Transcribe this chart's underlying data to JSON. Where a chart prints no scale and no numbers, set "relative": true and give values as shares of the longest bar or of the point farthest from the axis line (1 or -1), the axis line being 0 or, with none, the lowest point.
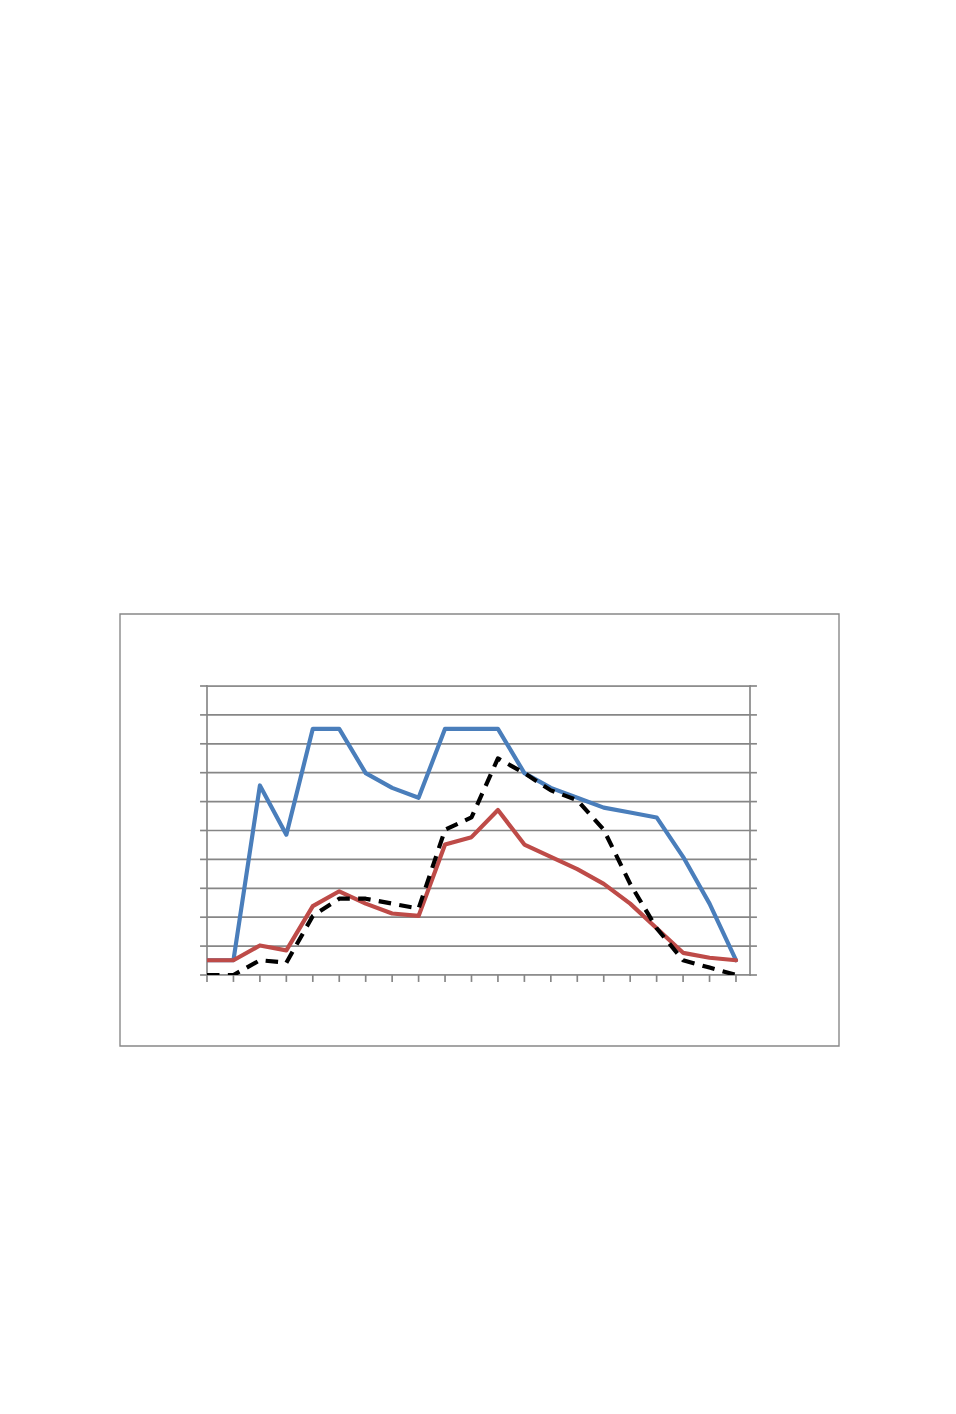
{
  "chart_data": {
    "type": "line",
    "relative": true,
    "grid": "y",
    "line_style": "solid",
    "marker": "none",
    "categories": [
      null,
      null,
      null,
      null,
      null,
      null,
      null,
      null,
      null,
      null,
      null,
      null,
      null,
      null,
      null,
      null,
      null,
      null,
      null,
      null,
      null
    ],
    "series": [
      {
        "color": "#4a7ebb",
        "values": [
          0.06,
          0.06,
          0.77,
          0.57,
          1,
          1,
          0.82,
          0.76,
          0.72,
          1,
          1,
          1,
          0.82,
          0.76,
          0.72,
          0.68,
          0.66,
          0.64,
          0.48,
          0.29,
          0.06
        ]
      },
      {
        "color": "#be4b48",
        "values": [
          0.06,
          0.06,
          0.12,
          0.1,
          0.28,
          0.34,
          0.29,
          0.25,
          0.24,
          0.53,
          0.56,
          0.67,
          0.53,
          0.48,
          0.43,
          0.37,
          0.29,
          0.19,
          0.09,
          0.07,
          0.06
        ]
      },
      {
        "color": "#000000",
        "line_style": "dashed",
        "values": [
          0,
          0,
          0.06,
          0.05,
          0.24,
          0.31,
          0.31,
          0.29,
          0.27,
          0.59,
          0.64,
          0.88,
          0.82,
          0.75,
          0.71,
          0.59,
          0.37,
          0.19,
          0.06,
          0.03,
          0
        ]
      }
    ]
  }
}
